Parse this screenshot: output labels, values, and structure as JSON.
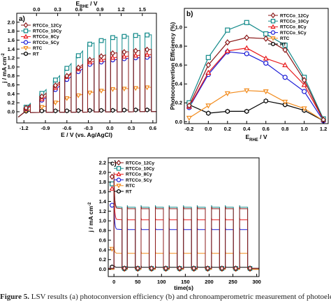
{
  "figure": {
    "caption_label": "Figure 5.",
    "caption_text": " LSV results (a) photoconversion efficiency (b) and chronoamperometric measurement of photoelectrodes"
  },
  "series_styles": [
    {
      "name": "RTCCo_12Cy",
      "color": "#8b1a1a",
      "marker": "diamond"
    },
    {
      "name": "RTCCo_10Cy",
      "color": "#138a8a",
      "marker": "square"
    },
    {
      "name": "RTCCo_8Cy",
      "color": "#e8191b",
      "marker": "triangle-up"
    },
    {
      "name": "RTCCo_5Cy",
      "color": "#1b1bd6",
      "marker": "circle"
    },
    {
      "name": "RTC",
      "color": "#f28b1c",
      "marker": "triangle-down"
    },
    {
      "name": "RT",
      "color": "#000000",
      "marker": "hexagon"
    }
  ],
  "chart_data": [
    {
      "panel": "a)",
      "type": "line",
      "xlabel": "E / V (vs. Ag/AgCl)",
      "x2label": "E_RHE / V",
      "ylabel": "j / mA cm-2",
      "xlim": [
        -1.3,
        0.65
      ],
      "ylim": [
        -0.25,
        2.2
      ],
      "xticks": [
        -1.2,
        -0.9,
        -0.6,
        -0.3,
        0.0,
        0.3,
        0.6
      ],
      "xtick_labels": [
        "-1.2",
        "-0.9",
        "-0.6",
        "-0.3",
        "0.0",
        "0.3",
        "0.6"
      ],
      "x2ticks": [
        0.0,
        0.3,
        0.6,
        0.9,
        1.2,
        1.5
      ],
      "x2tick_labels": [
        "0.0",
        "0.3",
        "0.6",
        "0.9",
        "1.2",
        "1.5"
      ],
      "yticks": [
        0.0,
        0.2,
        0.4,
        0.6,
        0.8,
        1.0,
        1.2,
        1.4,
        1.6,
        1.8,
        2.0
      ],
      "ytick_labels": [
        "0.0",
        "0.2",
        "0.4",
        "0.6",
        "0.8",
        "1.0",
        "1.2",
        "1.4",
        "1.6",
        "1.8",
        "2.0"
      ],
      "legend_position": "top-left",
      "chopped_light": true,
      "light_on_start": [
        -1.2,
        -0.98,
        -0.79,
        -0.63,
        -0.47,
        -0.31,
        -0.15,
        0.01,
        0.17,
        0.33,
        0.49
      ],
      "pulse_width": 0.09,
      "series": [
        {
          "name": "RTCCo_12Cy",
          "x": [
            -1.2,
            -0.9,
            -0.6,
            -0.3,
            0.0,
            0.3,
            0.6
          ],
          "y": [
            0.05,
            0.4,
            0.8,
            1.15,
            1.3,
            1.35,
            1.4
          ]
        },
        {
          "name": "RTCCo_10Cy",
          "x": [
            -1.2,
            -0.9,
            -0.6,
            -0.3,
            0.0,
            0.3,
            0.6
          ],
          "y": [
            0.06,
            0.48,
            0.97,
            1.5,
            1.65,
            1.7,
            1.72
          ]
        },
        {
          "name": "RTCCo_8Cy",
          "x": [
            -1.2,
            -0.9,
            -0.6,
            -0.3,
            0.0,
            0.3,
            0.6
          ],
          "y": [
            0.04,
            0.33,
            0.78,
            1.1,
            1.2,
            1.25,
            1.28
          ]
        },
        {
          "name": "RTCCo_5Cy",
          "x": [
            -1.2,
            -0.9,
            -0.6,
            -0.3,
            0.0,
            0.3,
            0.6
          ],
          "y": [
            0.04,
            0.3,
            0.72,
            1.05,
            1.15,
            1.2,
            1.22
          ]
        },
        {
          "name": "RTC",
          "x": [
            -1.2,
            -0.9,
            -0.6,
            -0.3,
            0.0,
            0.3,
            0.6
          ],
          "y": [
            0.02,
            0.12,
            0.3,
            0.42,
            0.5,
            0.52,
            0.55
          ]
        },
        {
          "name": "RT",
          "x": [
            -1.2,
            -0.9,
            -0.6,
            -0.3,
            0.0,
            0.3,
            0.6
          ],
          "y": [
            0.01,
            0.02,
            0.02,
            0.03,
            0.03,
            0.04,
            0.04
          ]
        }
      ]
    },
    {
      "panel": "b)",
      "type": "line",
      "xlabel": "E_RHE / V",
      "ylabel": "Photoconvertion Efficiency (%)",
      "xlim": [
        -0.25,
        1.25
      ],
      "ylim": [
        -0.02,
        1.2
      ],
      "xticks": [
        -0.2,
        0.0,
        0.2,
        0.4,
        0.6,
        0.8,
        1.0,
        1.2
      ],
      "xtick_labels": [
        "-0.2",
        "0.0",
        "0.2",
        "0.4",
        "0.6",
        "0.8",
        "1.0",
        "1.2"
      ],
      "yticks": [
        0.0,
        0.2,
        0.4,
        0.6,
        0.8,
        1.0
      ],
      "ytick_labels": [
        "0.0",
        "0.2",
        "0.4",
        "0.6",
        "0.8",
        "1.0"
      ],
      "legend_position": "top-right",
      "series": [
        {
          "name": "RTCCo_12Cy",
          "x": [
            -0.2,
            0.0,
            0.2,
            0.4,
            0.6,
            0.8,
            1.0,
            1.2
          ],
          "y": [
            0.17,
            0.6,
            0.84,
            0.89,
            0.88,
            0.76,
            0.44,
            0.02
          ]
        },
        {
          "name": "RTCCo_10Cy",
          "x": [
            -0.2,
            0.0,
            0.2,
            0.4,
            0.6,
            0.8,
            1.0,
            1.2
          ],
          "y": [
            0.2,
            0.68,
            0.97,
            1.05,
            0.93,
            0.81,
            0.47,
            0.03
          ]
        },
        {
          "name": "RTCCo_8Cy",
          "x": [
            -0.2,
            0.0,
            0.2,
            0.4,
            0.6,
            0.8,
            1.0,
            1.2
          ],
          "y": [
            0.16,
            0.52,
            0.75,
            0.78,
            0.67,
            0.6,
            0.39,
            0.02
          ]
        },
        {
          "name": "RTCCo_5Cy",
          "x": [
            -0.2,
            0.0,
            0.2,
            0.4,
            0.6,
            0.8,
            1.0,
            1.2
          ],
          "y": [
            0.15,
            0.5,
            0.74,
            0.72,
            0.62,
            0.47,
            0.32,
            0.01
          ]
        },
        {
          "name": "RTC",
          "x": [
            -0.2,
            0.0,
            0.2,
            0.4,
            0.6,
            0.8,
            1.0,
            1.2
          ],
          "y": [
            0.04,
            0.17,
            0.3,
            0.33,
            0.32,
            0.21,
            0.14,
            0.01
          ]
        },
        {
          "name": "RT",
          "x": [
            -0.2,
            0.0,
            0.2,
            0.4,
            0.6,
            0.8,
            1.0,
            1.2
          ],
          "y": [
            0.18,
            0.09,
            0.11,
            0.11,
            0.22,
            0.18,
            0.12,
            0.01
          ]
        }
      ]
    },
    {
      "panel": "c)",
      "type": "line",
      "xlabel": "time(s)",
      "ylabel": "j / mA cm-2",
      "xlim": [
        -12,
        305
      ],
      "ylim": [
        -0.15,
        2.3
      ],
      "xticks": [
        0,
        50,
        100,
        150,
        200,
        250,
        300
      ],
      "xtick_labels": [
        "0",
        "50",
        "100",
        "150",
        "200",
        "250",
        "300"
      ],
      "yticks": [
        0.0,
        0.2,
        0.4,
        0.6,
        0.8,
        1.0,
        1.2,
        1.4,
        1.6,
        1.8,
        2.0,
        2.2
      ],
      "ytick_labels": [
        "0.0",
        "0.2",
        "0.4",
        "0.6",
        "0.8",
        "1.0",
        "1.2",
        "1.4",
        "1.6",
        "1.8",
        "2.0",
        "2.2"
      ],
      "legend_position": "top-left",
      "chopped_light": true,
      "light_on_start": [
        0,
        28,
        57,
        87,
        116,
        146,
        175,
        205,
        234,
        264
      ],
      "pulse_width": 17,
      "series": [
        {
          "name": "RTCCo_12Cy",
          "initial_spike": 2.0,
          "steady_on": 1.25,
          "dark": 0.02
        },
        {
          "name": "RTCCo_10Cy",
          "initial_spike": 1.85,
          "steady_on": 1.28,
          "dark": 0.02
        },
        {
          "name": "RTCCo_8Cy",
          "initial_spike": 1.75,
          "steady_on": 1.02,
          "dark": 0.02
        },
        {
          "name": "RTCCo_5Cy",
          "initial_spike": 1.4,
          "steady_on": 0.82,
          "dark": 0.02
        },
        {
          "name": "RTC",
          "initial_spike": 0.48,
          "steady_on": 0.33,
          "dark": 0.0
        },
        {
          "name": "RT",
          "initial_spike": 0.1,
          "steady_on": 0.04,
          "dark": 0.0
        }
      ]
    }
  ]
}
